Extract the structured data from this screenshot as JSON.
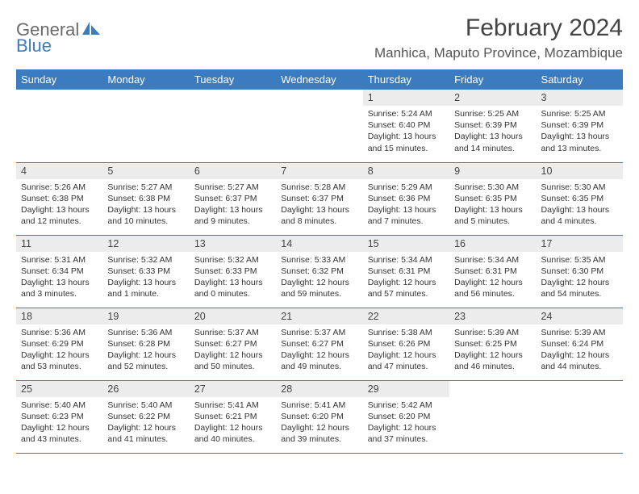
{
  "brand": {
    "part1": "General",
    "part2": "Blue"
  },
  "header": {
    "title": "February 2024",
    "location": "Manhica, Maputo Province, Mozambique"
  },
  "colors": {
    "accent": "#3b7bbf",
    "header_text": "#ffffff",
    "daynum_bg": "#ececec",
    "body_text": "#333333",
    "title_text": "#444444"
  },
  "weekdays": [
    "Sunday",
    "Monday",
    "Tuesday",
    "Wednesday",
    "Thursday",
    "Friday",
    "Saturday"
  ],
  "grid": [
    [
      {
        "n": "",
        "sr": "",
        "ss": "",
        "dl": ""
      },
      {
        "n": "",
        "sr": "",
        "ss": "",
        "dl": ""
      },
      {
        "n": "",
        "sr": "",
        "ss": "",
        "dl": ""
      },
      {
        "n": "",
        "sr": "",
        "ss": "",
        "dl": ""
      },
      {
        "n": "1",
        "sr": "Sunrise: 5:24 AM",
        "ss": "Sunset: 6:40 PM",
        "dl": "Daylight: 13 hours and 15 minutes."
      },
      {
        "n": "2",
        "sr": "Sunrise: 5:25 AM",
        "ss": "Sunset: 6:39 PM",
        "dl": "Daylight: 13 hours and 14 minutes."
      },
      {
        "n": "3",
        "sr": "Sunrise: 5:25 AM",
        "ss": "Sunset: 6:39 PM",
        "dl": "Daylight: 13 hours and 13 minutes."
      }
    ],
    [
      {
        "n": "4",
        "sr": "Sunrise: 5:26 AM",
        "ss": "Sunset: 6:38 PM",
        "dl": "Daylight: 13 hours and 12 minutes."
      },
      {
        "n": "5",
        "sr": "Sunrise: 5:27 AM",
        "ss": "Sunset: 6:38 PM",
        "dl": "Daylight: 13 hours and 10 minutes."
      },
      {
        "n": "6",
        "sr": "Sunrise: 5:27 AM",
        "ss": "Sunset: 6:37 PM",
        "dl": "Daylight: 13 hours and 9 minutes."
      },
      {
        "n": "7",
        "sr": "Sunrise: 5:28 AM",
        "ss": "Sunset: 6:37 PM",
        "dl": "Daylight: 13 hours and 8 minutes."
      },
      {
        "n": "8",
        "sr": "Sunrise: 5:29 AM",
        "ss": "Sunset: 6:36 PM",
        "dl": "Daylight: 13 hours and 7 minutes."
      },
      {
        "n": "9",
        "sr": "Sunrise: 5:30 AM",
        "ss": "Sunset: 6:35 PM",
        "dl": "Daylight: 13 hours and 5 minutes."
      },
      {
        "n": "10",
        "sr": "Sunrise: 5:30 AM",
        "ss": "Sunset: 6:35 PM",
        "dl": "Daylight: 13 hours and 4 minutes."
      }
    ],
    [
      {
        "n": "11",
        "sr": "Sunrise: 5:31 AM",
        "ss": "Sunset: 6:34 PM",
        "dl": "Daylight: 13 hours and 3 minutes."
      },
      {
        "n": "12",
        "sr": "Sunrise: 5:32 AM",
        "ss": "Sunset: 6:33 PM",
        "dl": "Daylight: 13 hours and 1 minute."
      },
      {
        "n": "13",
        "sr": "Sunrise: 5:32 AM",
        "ss": "Sunset: 6:33 PM",
        "dl": "Daylight: 13 hours and 0 minutes."
      },
      {
        "n": "14",
        "sr": "Sunrise: 5:33 AM",
        "ss": "Sunset: 6:32 PM",
        "dl": "Daylight: 12 hours and 59 minutes."
      },
      {
        "n": "15",
        "sr": "Sunrise: 5:34 AM",
        "ss": "Sunset: 6:31 PM",
        "dl": "Daylight: 12 hours and 57 minutes."
      },
      {
        "n": "16",
        "sr": "Sunrise: 5:34 AM",
        "ss": "Sunset: 6:31 PM",
        "dl": "Daylight: 12 hours and 56 minutes."
      },
      {
        "n": "17",
        "sr": "Sunrise: 5:35 AM",
        "ss": "Sunset: 6:30 PM",
        "dl": "Daylight: 12 hours and 54 minutes."
      }
    ],
    [
      {
        "n": "18",
        "sr": "Sunrise: 5:36 AM",
        "ss": "Sunset: 6:29 PM",
        "dl": "Daylight: 12 hours and 53 minutes."
      },
      {
        "n": "19",
        "sr": "Sunrise: 5:36 AM",
        "ss": "Sunset: 6:28 PM",
        "dl": "Daylight: 12 hours and 52 minutes."
      },
      {
        "n": "20",
        "sr": "Sunrise: 5:37 AM",
        "ss": "Sunset: 6:27 PM",
        "dl": "Daylight: 12 hours and 50 minutes."
      },
      {
        "n": "21",
        "sr": "Sunrise: 5:37 AM",
        "ss": "Sunset: 6:27 PM",
        "dl": "Daylight: 12 hours and 49 minutes."
      },
      {
        "n": "22",
        "sr": "Sunrise: 5:38 AM",
        "ss": "Sunset: 6:26 PM",
        "dl": "Daylight: 12 hours and 47 minutes."
      },
      {
        "n": "23",
        "sr": "Sunrise: 5:39 AM",
        "ss": "Sunset: 6:25 PM",
        "dl": "Daylight: 12 hours and 46 minutes."
      },
      {
        "n": "24",
        "sr": "Sunrise: 5:39 AM",
        "ss": "Sunset: 6:24 PM",
        "dl": "Daylight: 12 hours and 44 minutes."
      }
    ],
    [
      {
        "n": "25",
        "sr": "Sunrise: 5:40 AM",
        "ss": "Sunset: 6:23 PM",
        "dl": "Daylight: 12 hours and 43 minutes."
      },
      {
        "n": "26",
        "sr": "Sunrise: 5:40 AM",
        "ss": "Sunset: 6:22 PM",
        "dl": "Daylight: 12 hours and 41 minutes."
      },
      {
        "n": "27",
        "sr": "Sunrise: 5:41 AM",
        "ss": "Sunset: 6:21 PM",
        "dl": "Daylight: 12 hours and 40 minutes."
      },
      {
        "n": "28",
        "sr": "Sunrise: 5:41 AM",
        "ss": "Sunset: 6:20 PM",
        "dl": "Daylight: 12 hours and 39 minutes."
      },
      {
        "n": "29",
        "sr": "Sunrise: 5:42 AM",
        "ss": "Sunset: 6:20 PM",
        "dl": "Daylight: 12 hours and 37 minutes."
      },
      {
        "n": "",
        "sr": "",
        "ss": "",
        "dl": ""
      },
      {
        "n": "",
        "sr": "",
        "ss": "",
        "dl": ""
      }
    ]
  ]
}
